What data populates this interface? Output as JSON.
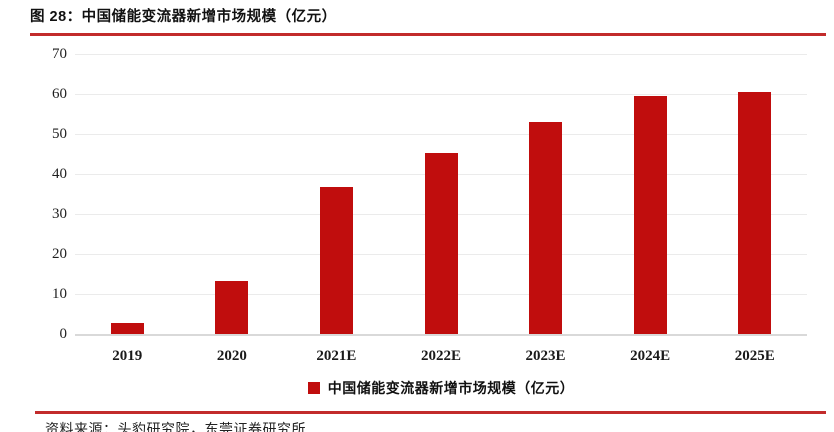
{
  "title": "图 28：中国储能变流器新增市场规模（亿元）",
  "legend": {
    "label": "中国储能变流器新增市场规模（亿元）"
  },
  "source": "资料来源：头豹研究院，东莞证券研究所",
  "colors": {
    "bar": "#c00d0d",
    "rule": "#c22b2b",
    "grid": "#ebebeb",
    "baseline": "#d9d9d9"
  },
  "chart_data": {
    "type": "bar",
    "title": "图 28：中国储能变流器新增市场规模（亿元）",
    "categories": [
      "2019",
      "2020",
      "2021E",
      "2022E",
      "2023E",
      "2024E",
      "2025E"
    ],
    "values": [
      2.8,
      13.3,
      36.8,
      45.3,
      53.0,
      59.5,
      60.4
    ],
    "series_name": "中国储能变流器新增市场规模（亿元）",
    "xlabel": "",
    "ylabel": "",
    "ylim": [
      0,
      70
    ],
    "ytick_step": 10,
    "yticks": [
      0,
      10,
      20,
      30,
      40,
      50,
      60,
      70
    ],
    "grid": true,
    "legend_position": "bottom",
    "bar_color": "#c00d0d"
  }
}
